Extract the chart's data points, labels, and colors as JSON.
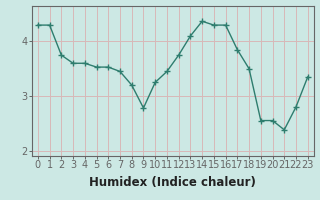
{
  "x": [
    0,
    1,
    2,
    3,
    4,
    5,
    6,
    7,
    8,
    9,
    10,
    11,
    12,
    13,
    14,
    15,
    16,
    17,
    18,
    19,
    20,
    21,
    22,
    23
  ],
  "y": [
    4.3,
    4.3,
    3.75,
    3.6,
    3.6,
    3.53,
    3.53,
    3.45,
    3.2,
    2.78,
    3.25,
    3.45,
    3.75,
    4.1,
    4.37,
    4.3,
    4.3,
    3.85,
    3.5,
    2.55,
    2.55,
    2.38,
    2.8,
    3.35
  ],
  "line_color": "#2e7d6e",
  "marker": "+",
  "marker_size": 4,
  "line_width": 1.0,
  "bg_color": "#cce8e4",
  "grid_color": "#d8b8b8",
  "axis_color": "#666666",
  "xlabel": "Humidex (Indice chaleur)",
  "ylim": [
    1.9,
    4.65
  ],
  "xlim": [
    -0.5,
    23.5
  ],
  "yticks": [
    2,
    3,
    4
  ],
  "xtick_labels": [
    "0",
    "1",
    "2",
    "3",
    "4",
    "5",
    "6",
    "7",
    "8",
    "9",
    "10",
    "11",
    "12",
    "13",
    "14",
    "15",
    "16",
    "17",
    "18",
    "19",
    "20",
    "21",
    "22",
    "23"
  ],
  "xlabel_fontsize": 8.5,
  "tick_fontsize": 7
}
